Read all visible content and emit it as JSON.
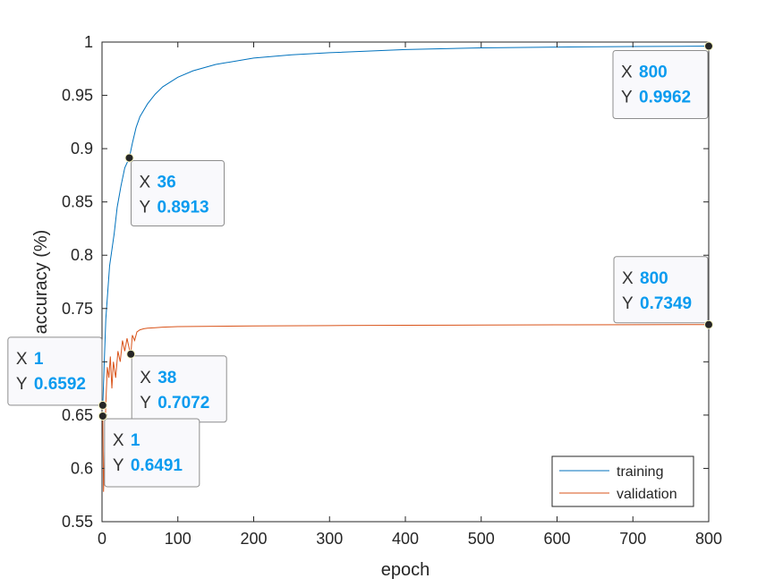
{
  "chart_data": {
    "type": "line",
    "title": "",
    "xlabel": "epoch",
    "ylabel": "accuracy (%)",
    "xlim": [
      0,
      800
    ],
    "ylim": [
      0.55,
      1
    ],
    "xticks": [
      0,
      100,
      200,
      300,
      400,
      500,
      600,
      700,
      800
    ],
    "yticks": [
      0.55,
      0.6,
      0.65,
      0.7,
      0.75,
      0.8,
      0.85,
      0.9,
      0.95,
      1
    ],
    "ytick_labels": [
      "0.55",
      "0.6",
      "0.65",
      "",
      "0.75",
      "0.8",
      "0.85",
      "0.9",
      "0.95",
      "1"
    ],
    "grid": false,
    "legend_position": "bottom-right",
    "series": [
      {
        "name": "training",
        "color": "#0072BD",
        "x": [
          1,
          3,
          5,
          8,
          10,
          13,
          16,
          20,
          25,
          30,
          36,
          40,
          45,
          50,
          60,
          70,
          80,
          100,
          120,
          150,
          200,
          250,
          300,
          400,
          500,
          600,
          700,
          800
        ],
        "y": [
          0.6592,
          0.7,
          0.74,
          0.77,
          0.79,
          0.805,
          0.82,
          0.845,
          0.865,
          0.882,
          0.8913,
          0.905,
          0.92,
          0.93,
          0.942,
          0.951,
          0.958,
          0.967,
          0.973,
          0.979,
          0.985,
          0.988,
          0.99,
          0.993,
          0.9945,
          0.9953,
          0.9958,
          0.9962
        ]
      },
      {
        "name": "validation",
        "color": "#D95319",
        "x": [
          1,
          2,
          3,
          5,
          7,
          9,
          11,
          13,
          15,
          18,
          21,
          24,
          27,
          30,
          33,
          36,
          38,
          40,
          43,
          46,
          50,
          55,
          60,
          70,
          80,
          100,
          150,
          200,
          300,
          400,
          500,
          600,
          700,
          800
        ],
        "y": [
          0.6491,
          0.578,
          0.6,
          0.66,
          0.695,
          0.685,
          0.705,
          0.675,
          0.7,
          0.685,
          0.71,
          0.7,
          0.72,
          0.71,
          0.722,
          0.712,
          0.7072,
          0.725,
          0.72,
          0.728,
          0.73,
          0.731,
          0.7315,
          0.732,
          0.7325,
          0.733,
          0.7333,
          0.7336,
          0.734,
          0.7343,
          0.7345,
          0.7347,
          0.7348,
          0.7349
        ]
      }
    ],
    "datatips": [
      {
        "x": 800,
        "y": 0.9962,
        "x_label": "800",
        "y_label": "0.9962"
      },
      {
        "x": 36,
        "y": 0.8913,
        "x_label": "36",
        "y_label": "0.8913"
      },
      {
        "x": 800,
        "y": 0.7349,
        "x_label": "800",
        "y_label": "0.7349"
      },
      {
        "x": 1,
        "y": 0.6592,
        "x_label": "1",
        "y_label": "0.6592"
      },
      {
        "x": 38,
        "y": 0.7072,
        "x_label": "38",
        "y_label": "0.7072"
      },
      {
        "x": 1,
        "y": 0.6491,
        "x_label": "1",
        "y_label": "0.6491"
      }
    ],
    "datatip_x_key": "X",
    "datatip_y_key": "Y"
  }
}
